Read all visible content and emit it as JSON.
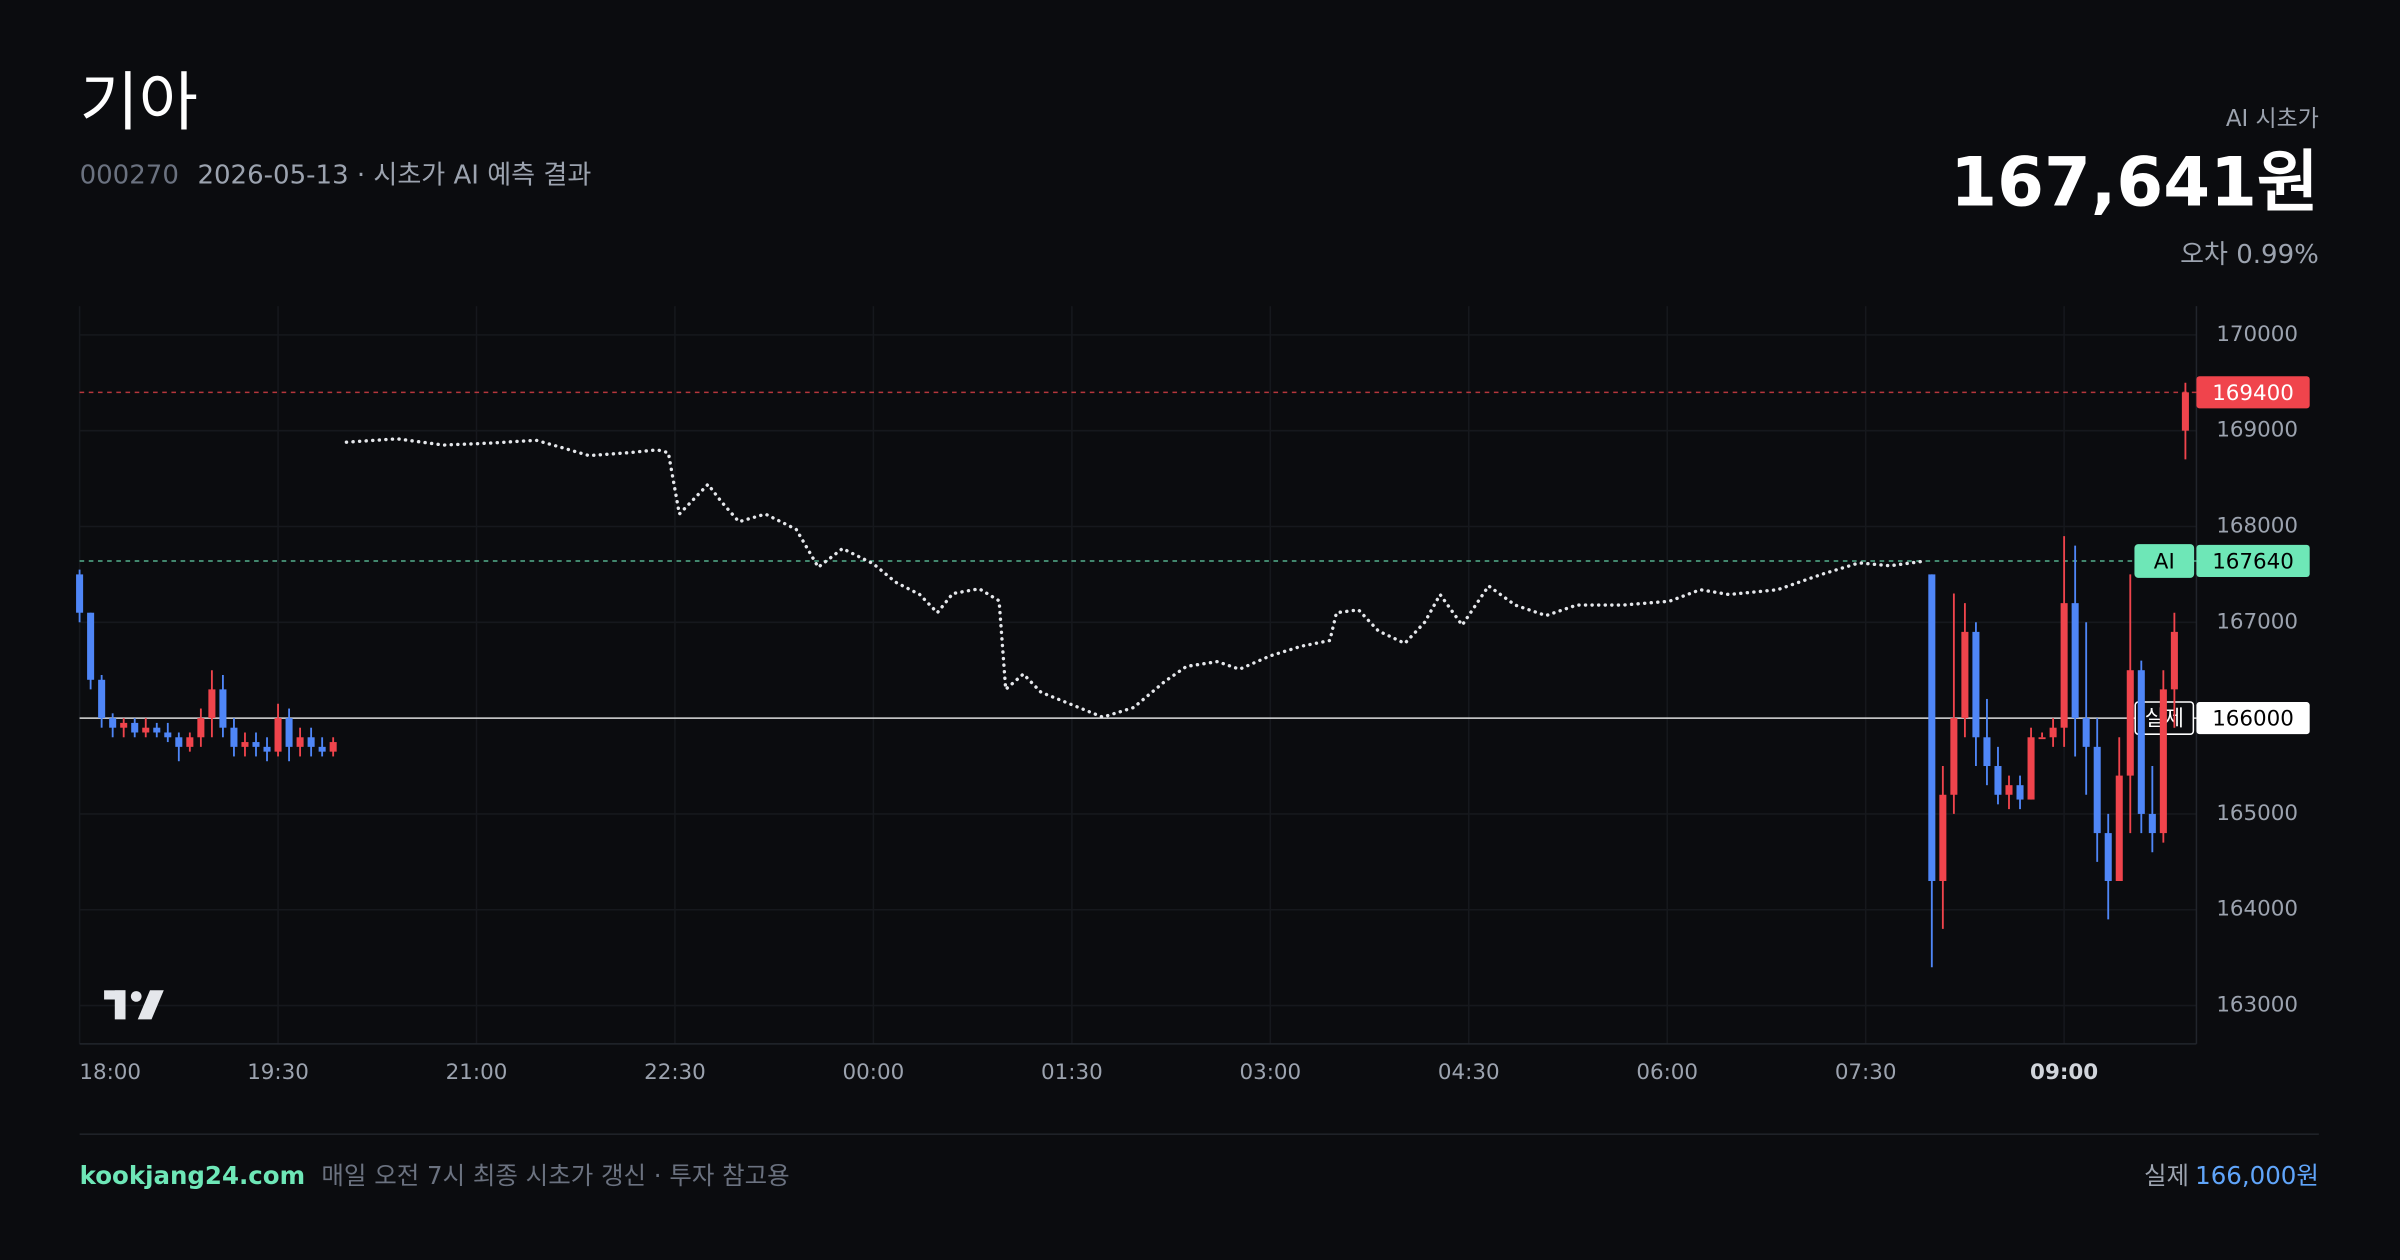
{
  "header": {
    "title": "기아",
    "code": "000270",
    "subtitle": "2026-05-13 · 시초가 AI 예측 결과",
    "ai_label": "AI 시초가",
    "ai_price": "167,641원",
    "error": "오차 0.99%"
  },
  "footer": {
    "site": "kookjang24.com",
    "note": "매일 오전 7시 최종 시초가 갱신 · 투자 참고용",
    "actual_label": "실제",
    "actual_price": "166,000원"
  },
  "chart_data": {
    "type": "candlestick",
    "xlim": [
      "18:00",
      "10:00"
    ],
    "xticks": [
      "18:00",
      "19:30",
      "21:00",
      "22:30",
      "00:00",
      "01:30",
      "03:00",
      "04:30",
      "06:00",
      "07:30",
      "09:00"
    ],
    "bold_xtick": 10,
    "ylim": [
      162600,
      170300
    ],
    "yticks": [
      163000,
      164000,
      165000,
      166000,
      167000,
      168000,
      169000,
      170000
    ],
    "grid": true,
    "up_color": "#f0444c",
    "down_color": "#4f86f7",
    "candles": {
      "x": [
        "18:00",
        "18:05",
        "18:10",
        "18:15",
        "18:20",
        "18:25",
        "18:30",
        "18:35",
        "18:40",
        "18:45",
        "18:50",
        "18:55",
        "19:00",
        "19:05",
        "19:10",
        "19:15",
        "19:20",
        "19:25",
        "19:30",
        "19:35",
        "19:40",
        "19:45",
        "19:50",
        "19:55",
        "08:00",
        "08:05",
        "08:10",
        "08:15",
        "08:20",
        "08:25",
        "08:30",
        "08:35",
        "08:40",
        "08:45",
        "08:50",
        "08:55",
        "09:00",
        "09:05",
        "09:10",
        "09:15",
        "09:20",
        "09:25",
        "09:30",
        "09:35",
        "09:40",
        "09:45",
        "09:50",
        "09:55"
      ],
      "open": [
        167500,
        167100,
        166400,
        166000,
        165900,
        165950,
        165850,
        165900,
        165850,
        165800,
        165700,
        165800,
        166000,
        166300,
        165900,
        165700,
        165750,
        165700,
        165650,
        166000,
        165700,
        165800,
        165700,
        165650,
        167500,
        164300,
        165200,
        166000,
        166900,
        165800,
        165500,
        165200,
        165300,
        165150,
        165800,
        165800,
        165900,
        167200,
        166000,
        165700,
        164800,
        164300,
        165400,
        166500,
        165000,
        164800,
        166300,
        169000
      ],
      "high": [
        167550,
        167100,
        166450,
        166050,
        166000,
        166000,
        166000,
        165950,
        165950,
        165850,
        165850,
        166100,
        166500,
        166450,
        166000,
        165850,
        165850,
        165800,
        166150,
        166100,
        165900,
        165900,
        165800,
        165800,
        167500,
        165500,
        167300,
        167200,
        167000,
        166200,
        165700,
        165400,
        165400,
        165900,
        165850,
        166000,
        167900,
        167800,
        167000,
        166000,
        165000,
        165800,
        167500,
        166600,
        165500,
        166500,
        167100,
        169500
      ],
      "low": [
        167000,
        166300,
        165900,
        165800,
        165800,
        165800,
        165800,
        165800,
        165750,
        165550,
        165650,
        165700,
        165800,
        165800,
        165600,
        165600,
        165600,
        165550,
        165600,
        165550,
        165600,
        165600,
        165600,
        165600,
        163400,
        163800,
        165000,
        165800,
        165500,
        165300,
        165100,
        165050,
        165050,
        165150,
        165800,
        165700,
        165700,
        165600,
        165200,
        164500,
        163900,
        164300,
        164800,
        164800,
        164600,
        164700,
        165900,
        168700
      ],
      "close": [
        167100,
        166400,
        166000,
        165900,
        165950,
        165850,
        165900,
        165850,
        165800,
        165700,
        165800,
        166000,
        166300,
        165900,
        165700,
        165750,
        165700,
        165650,
        166000,
        165700,
        165800,
        165700,
        165650,
        165750,
        164300,
        165200,
        166000,
        166900,
        165800,
        165500,
        165200,
        165300,
        165150,
        165800,
        165800,
        165900,
        167200,
        166000,
        165700,
        164800,
        164300,
        165400,
        166500,
        165000,
        164800,
        166300,
        166900,
        169400
      ]
    },
    "prediction": {
      "color": "#e5e7eb",
      "x": [
        "20:01",
        "20:24",
        "20:45",
        "21:06",
        "21:27",
        "21:37",
        "21:51",
        "22:09",
        "22:22",
        "22:27",
        "22:32",
        "22:45",
        "22:51",
        "22:59",
        "23:11",
        "23:25",
        "23:35",
        "23:46",
        "00:00",
        "00:10",
        "00:21",
        "00:29",
        "00:36",
        "00:48",
        "00:57",
        "01:00",
        "01:08",
        "01:16",
        "01:30",
        "01:44",
        "01:58",
        "02:12",
        "02:22",
        "02:36",
        "02:46",
        "03:00",
        "03:14",
        "03:27",
        "03:30",
        "03:40",
        "03:49",
        "04:01",
        "04:10",
        "04:17",
        "04:27",
        "04:39",
        "04:51",
        "05:05",
        "05:19",
        "05:40",
        "06:01",
        "06:15",
        "06:28",
        "06:50",
        "07:10",
        "07:27",
        "07:41",
        "07:57"
      ],
      "values": [
        168880,
        168915,
        168850,
        168870,
        168900,
        168835,
        168740,
        168770,
        168800,
        168770,
        168130,
        168440,
        168260,
        168050,
        168130,
        167970,
        167575,
        167770,
        167610,
        167420,
        167290,
        167100,
        167300,
        167350,
        167225,
        166300,
        166460,
        166270,
        166140,
        166010,
        166110,
        166380,
        166540,
        166590,
        166510,
        166650,
        166750,
        166810,
        167100,
        167130,
        166910,
        166780,
        167000,
        167290,
        166970,
        167380,
        167180,
        167070,
        167180,
        167180,
        167220,
        167340,
        167290,
        167340,
        167500,
        167620,
        167590,
        167640
      ]
    },
    "price_lines": [
      {
        "value": 169400,
        "color": "#f0444c",
        "style": "dashed"
      },
      {
        "label": "AI",
        "value": 167640,
        "color": "#6ee7b7",
        "style": "dashed"
      },
      {
        "label": "실제",
        "value": 166000,
        "color": "#ffffff",
        "style": "solid"
      }
    ]
  }
}
